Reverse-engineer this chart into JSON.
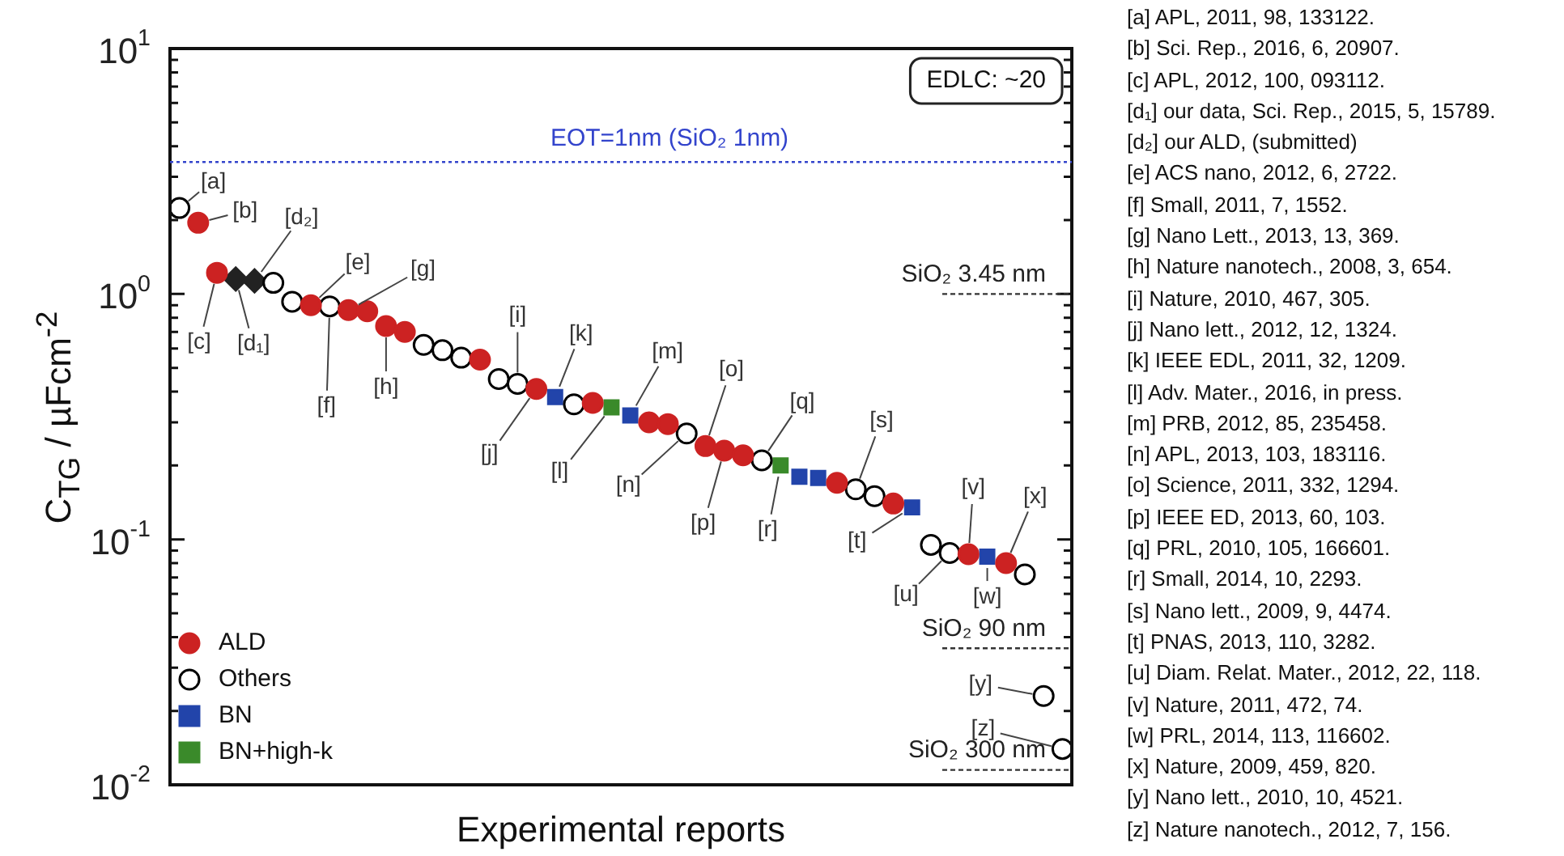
{
  "chart_data": {
    "type": "scatter",
    "xlabel": "Experimental reports",
    "ylabel": "C$_{TG}$ / µFcm$^{-2}$",
    "categories": [
      null,
      null,
      null,
      null,
      null,
      null,
      null,
      null,
      null,
      null,
      null,
      null,
      null,
      null,
      null,
      null,
      null,
      null,
      null,
      null,
      null,
      null,
      null,
      null,
      null,
      null,
      null,
      null,
      null,
      null,
      null,
      null,
      null,
      null,
      null,
      null,
      null,
      null,
      null,
      null,
      null,
      null,
      null,
      null,
      null,
      null,
      null,
      null
    ],
    "series": [
      {
        "name": "ALD",
        "color": "#cc2222",
        "marker": "circle",
        "values": [
          null,
          1.95,
          1.22,
          null,
          null,
          null,
          null,
          0.9,
          null,
          0.86,
          0.85,
          0.74,
          0.7,
          null,
          null,
          null,
          0.54,
          null,
          null,
          0.41,
          null,
          null,
          0.36,
          null,
          null,
          0.3,
          0.295,
          null,
          0.24,
          0.23,
          0.22,
          null,
          null,
          null,
          null,
          0.17,
          null,
          null,
          0.14,
          null,
          null,
          null,
          0.087,
          null,
          0.08,
          null,
          null,
          null
        ]
      },
      {
        "name": "Others",
        "color": "#ffffff",
        "marker": "circle",
        "values": [
          2.24,
          null,
          null,
          null,
          null,
          1.11,
          0.93,
          null,
          0.89,
          null,
          null,
          null,
          null,
          0.62,
          0.59,
          0.55,
          null,
          0.45,
          0.43,
          null,
          null,
          0.355,
          null,
          null,
          null,
          null,
          null,
          0.27,
          null,
          null,
          null,
          0.21,
          null,
          null,
          null,
          null,
          0.16,
          0.15,
          null,
          null,
          0.095,
          0.088,
          null,
          null,
          null,
          0.072,
          0.023,
          0.014
        ]
      },
      {
        "name": "BN",
        "color": "#2244aa",
        "marker": "square",
        "values": [
          null,
          null,
          null,
          null,
          null,
          null,
          null,
          null,
          null,
          null,
          null,
          null,
          null,
          null,
          null,
          null,
          null,
          null,
          null,
          null,
          0.38,
          null,
          null,
          null,
          0.32,
          null,
          null,
          null,
          null,
          null,
          null,
          null,
          null,
          0.18,
          0.178,
          null,
          null,
          null,
          null,
          0.135,
          null,
          null,
          null,
          0.085,
          null,
          null,
          null,
          null
        ]
      },
      {
        "name": "BN+high-k",
        "color": "#3a8a2a",
        "marker": "square",
        "values": [
          null,
          null,
          null,
          null,
          null,
          null,
          null,
          null,
          null,
          null,
          null,
          null,
          null,
          null,
          null,
          null,
          null,
          null,
          null,
          null,
          null,
          null,
          null,
          0.345,
          null,
          null,
          null,
          null,
          null,
          null,
          null,
          null,
          0.2,
          null,
          null,
          null,
          null,
          null,
          null,
          null,
          null,
          null,
          null,
          null,
          null,
          null,
          null,
          null
        ]
      },
      {
        "color": "#222222",
        "marker": "diamond",
        "values": [
          null,
          null,
          null,
          1.15,
          1.13,
          null,
          null,
          null,
          null,
          null,
          null,
          null,
          null,
          null,
          null,
          null,
          null,
          null,
          null,
          null,
          null,
          null,
          null,
          null,
          null,
          null,
          null,
          null,
          null,
          null,
          null,
          null,
          null,
          null,
          null,
          null,
          null,
          null,
          null,
          null,
          null,
          null,
          null,
          null,
          null,
          null,
          null,
          null
        ]
      }
    ],
    "log": "y",
    "ylim": [
      0.01,
      10
    ],
    "yticks": [
      {
        "value": 0.01,
        "label": "10$^{-2}$"
      },
      {
        "value": 0.02,
        "label": null
      },
      {
        "value": 0.03,
        "label": null
      },
      {
        "value": 0.04,
        "label": null
      },
      {
        "value": 0.05,
        "label": null
      },
      {
        "value": 0.06,
        "label": null
      },
      {
        "value": 0.07,
        "label": null
      },
      {
        "value": 0.08,
        "label": null
      },
      {
        "value": 0.09,
        "label": null
      },
      {
        "value": 0.1,
        "label": "10$^{-1}$"
      },
      {
        "value": 0.2,
        "label": null
      },
      {
        "value": 0.3,
        "label": null
      },
      {
        "value": 0.4,
        "label": null
      },
      {
        "value": 0.5,
        "label": null
      },
      {
        "value": 0.6,
        "label": null
      },
      {
        "value": 0.7,
        "label": null
      },
      {
        "value": 0.8,
        "label": null
      },
      {
        "value": 0.9,
        "label": null
      },
      {
        "value": 1,
        "label": "10$^{0}$"
      },
      {
        "value": 2,
        "label": null
      },
      {
        "value": 3,
        "label": null
      },
      {
        "value": 4,
        "label": null
      },
      {
        "value": 5,
        "label": null
      },
      {
        "value": 6,
        "label": null
      },
      {
        "value": 7,
        "label": null
      },
      {
        "value": 8,
        "label": null
      },
      {
        "value": 9,
        "label": null
      },
      {
        "value": 10,
        "label": "10$^{1}$"
      }
    ],
    "grid": false,
    "legend": "bottom left",
    "tick_labels": "y",
    "ref_lines": [
      {
        "axis": "y",
        "value": 3.45,
        "color": "#3344cc",
        "line_style": "dotted"
      },
      {
        "axis": "y",
        "value": 1.0,
        "label": "SiO₂ 3.45 nm",
        "line_style": "dashed"
      },
      {
        "axis": "y",
        "value": 0.036,
        "label": "SiO₂ 90 nm",
        "line_style": "dashed"
      },
      {
        "axis": "y",
        "value": 0.0115,
        "label": "SiO₂ 300 nm",
        "line_style": "dashed"
      }
    ],
    "annotations": [
      "EDLC: ~20",
      "EOT=1nm (SiO₂ 1nm)",
      "[a]",
      "[b]",
      "[c]",
      "[d₁]",
      "[d₂]",
      "[e]",
      "[f]",
      "[g]",
      "[h]",
      "[i]",
      "[j]",
      "[k]",
      "[l]",
      "[m]",
      "[n]",
      "[o]",
      "[p]",
      "[q]",
      "[r]",
      "[s]",
      "[t]",
      "[u]",
      "[v]",
      "[w]",
      "[x]",
      "[y]",
      "[z]",
      "[a] APL, 2011, 98, 133122.",
      "[b] Sci. Rep., 2016, 6, 20907.",
      "[c] APL, 2012, 100, 093112.",
      "[d₁] our data, Sci. Rep., 2015, 5, 15789.",
      "[d₂] our ALD, (submitted)",
      "[e] ACS nano, 2012, 6, 2722.",
      "[f] Small, 2011, 7, 1552.",
      "[g] Nano Lett., 2013, 13, 369.",
      "[h] Nature nanotech., 2008, 3, 654.",
      "[i] Nature, 2010, 467, 305.",
      "[j] Nano lett., 2012, 12, 1324.",
      "[k] IEEE EDL, 2011, 32, 1209.",
      "[l] Adv. Mater., 2016, in press.",
      "[m] PRB, 2012, 85, 235458.",
      "[n] APL, 2013, 103, 183116.",
      "[o] Science, 2011, 332, 1294.",
      "[p] IEEE ED, 2013, 60, 103.",
      "[q] PRL, 2010, 105, 166601.",
      "[r] Small, 2014, 10, 2293.",
      "[s] Nano lett., 2009, 9, 4474.",
      "[t] PNAS, 2013, 110, 3282.",
      "[u] Diam. Relat. Mater., 2012, 22, 118.",
      "[v] Nature, 2011, 472, 74.",
      "[w] PRL, 2014, 113, 116602.",
      "[x] Nature, 2009, 459, 820.",
      "[y] Nano lett., 2010, 10, 4521.",
      "[z] Nature nanotech., 2012, 7, 156."
    ]
  }
}
